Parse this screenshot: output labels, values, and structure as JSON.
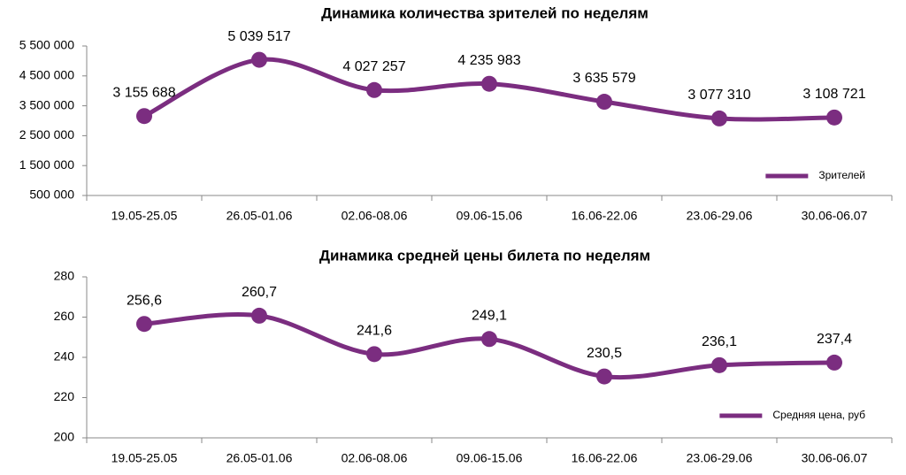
{
  "chart_data": [
    {
      "type": "line",
      "title": "Динамика количества зрителей по неделям",
      "categories": [
        "19.05-25.05",
        "26.05-01.06",
        "02.06-08.06",
        "09.06-15.06",
        "16.06-22.06",
        "23.06-29.06",
        "30.06-06.07"
      ],
      "series": [
        {
          "name": "Зрителей",
          "color": "#7b2d80",
          "values": [
            3155688,
            5039517,
            4027257,
            4235983,
            3635579,
            3077310,
            3108721
          ],
          "value_labels": [
            "3 155 688",
            "5 039 517",
            "4 027 257",
            "4 235 983",
            "3 635 579",
            "3 077 310",
            "3 108 721"
          ]
        }
      ],
      "ylim": [
        500000,
        5500000
      ],
      "yticks": [
        {
          "value": 500000,
          "label": "500 000"
        },
        {
          "value": 1500000,
          "label": "1 500 000"
        },
        {
          "value": 2500000,
          "label": "2 500 000"
        },
        {
          "value": 3500000,
          "label": "3 500 000"
        },
        {
          "value": 4500000,
          "label": "4 500 000"
        },
        {
          "value": 5500000,
          "label": "5 500 000"
        }
      ],
      "smooth": true,
      "legend": "lower right"
    },
    {
      "type": "line",
      "title": "Динамика средней цены билета по неделям",
      "categories": [
        "19.05-25.05",
        "26.05-01.06",
        "02.06-08.06",
        "09.06-15.06",
        "16.06-22.06",
        "23.06-29.06",
        "30.06-06.07"
      ],
      "series": [
        {
          "name": "Средняя цена, руб",
          "color": "#7b2d80",
          "values": [
            256.6,
            260.7,
            241.6,
            249.1,
            230.5,
            236.1,
            237.4
          ],
          "value_labels": [
            "256,6",
            "260,7",
            "241,6",
            "249,1",
            "230,5",
            "236,1",
            "237,4"
          ]
        }
      ],
      "ylim": [
        200,
        280
      ],
      "yticks": [
        200,
        220,
        240,
        260,
        280
      ],
      "smooth": true,
      "legend": "lower right"
    }
  ]
}
